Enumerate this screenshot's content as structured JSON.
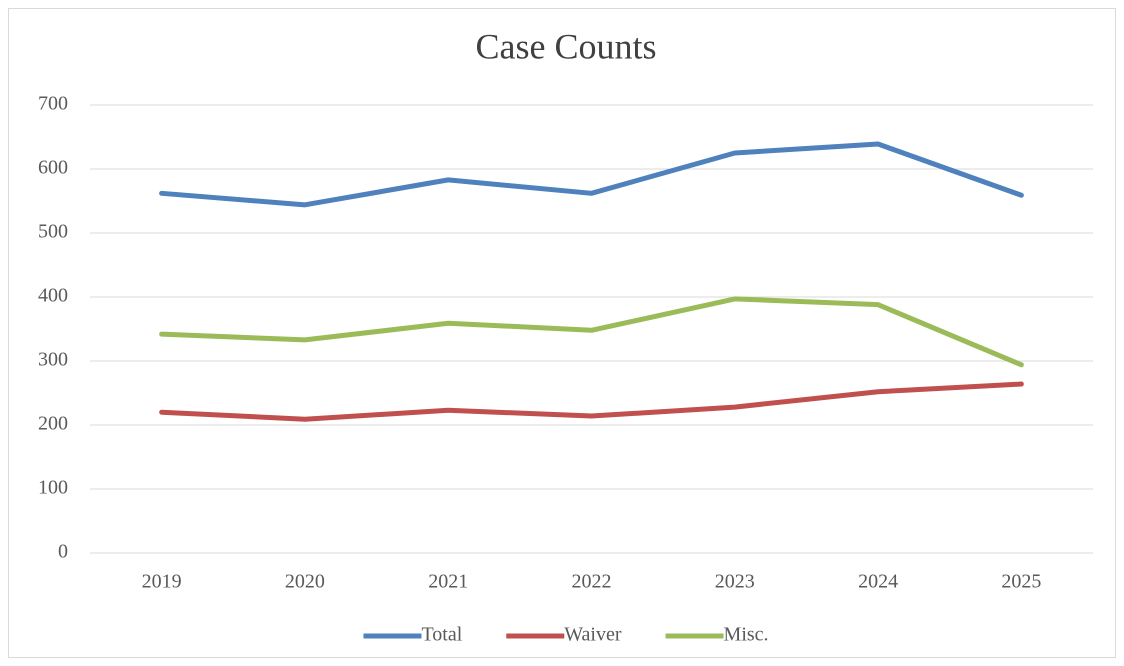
{
  "chart_data": {
    "type": "line",
    "title": "Case Counts",
    "categories": [
      "2019",
      "2020",
      "2021",
      "2022",
      "2023",
      "2024",
      "2025"
    ],
    "series": [
      {
        "name": "Total",
        "color": "#4f81bd",
        "values": [
          562,
          544,
          583,
          562,
          625,
          639,
          559
        ]
      },
      {
        "name": "Waiver",
        "color": "#c0504d",
        "values": [
          220,
          209,
          223,
          214,
          228,
          252,
          264
        ]
      },
      {
        "name": "Misc.",
        "color": "#9bbb59",
        "values": [
          342,
          333,
          359,
          348,
          397,
          388,
          294
        ]
      }
    ],
    "ylim": [
      0,
      700
    ],
    "yticks": [
      0,
      100,
      200,
      300,
      400,
      500,
      600,
      700
    ],
    "grid": true,
    "legend": "bottom"
  }
}
